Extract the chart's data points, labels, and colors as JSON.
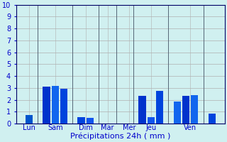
{
  "background_color": "#d0f0f0",
  "grid_color": "#b0b0b0",
  "xlabel": "Précipitations 24h ( mm )",
  "ylim": [
    0,
    10
  ],
  "yticks": [
    0,
    1,
    2,
    3,
    4,
    5,
    6,
    7,
    8,
    9,
    10
  ],
  "xlabel_color": "#0000cc",
  "tick_color": "#0000cc",
  "axis_color": "#000066",
  "xlabel_fontsize": 8,
  "tick_fontsize": 7,
  "bars": [
    {
      "x": 1,
      "val": 0.7,
      "color": "#0055cc"
    },
    {
      "x": 3,
      "val": 3.1,
      "color": "#0033cc"
    },
    {
      "x": 4,
      "val": 3.15,
      "color": "#1166ee"
    },
    {
      "x": 5,
      "val": 2.9,
      "color": "#0044dd"
    },
    {
      "x": 7,
      "val": 0.55,
      "color": "#0044dd"
    },
    {
      "x": 8,
      "val": 0.45,
      "color": "#1155ee"
    },
    {
      "x": 14,
      "val": 2.3,
      "color": "#0033cc"
    },
    {
      "x": 15,
      "val": 0.55,
      "color": "#1155ee"
    },
    {
      "x": 16,
      "val": 2.75,
      "color": "#0044dd"
    },
    {
      "x": 18,
      "val": 1.85,
      "color": "#1166ee"
    },
    {
      "x": 19,
      "val": 2.3,
      "color": "#0033cc"
    },
    {
      "x": 20,
      "val": 2.4,
      "color": "#1166ee"
    },
    {
      "x": 22,
      "val": 0.85,
      "color": "#0044dd"
    }
  ],
  "day_ticks": [
    1,
    4,
    7.5,
    10,
    12.5,
    15,
    19.5
  ],
  "day_labels": [
    "Lun",
    "Sam",
    "Dim",
    "Mar",
    "Mer",
    "Jeu",
    "Ven"
  ],
  "sep_lines": [
    2,
    6,
    9,
    11,
    13,
    17,
    21
  ]
}
